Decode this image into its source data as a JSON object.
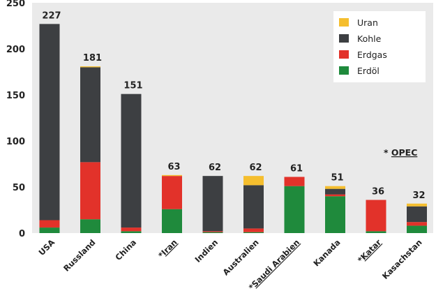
{
  "chart_data": {
    "type": "bar",
    "stacked": true,
    "categories": [
      "USA",
      "Russland",
      "China",
      "*Iran",
      "Indien",
      "Australien",
      "*Saudi Arabien",
      "Kanada",
      "*Katar",
      "Kasachstan"
    ],
    "opec_marked": [
      false,
      false,
      false,
      true,
      false,
      false,
      true,
      false,
      true,
      false
    ],
    "totals": [
      227,
      181,
      151,
      63,
      62,
      62,
      61,
      51,
      36,
      32
    ],
    "series": [
      {
        "name": "Erdöl",
        "color": "#1f8a3c",
        "values": [
          6,
          15,
          2,
          26,
          1,
          1,
          51,
          40,
          2,
          8
        ]
      },
      {
        "name": "Erdgas",
        "color": "#e2322a",
        "values": [
          8,
          62,
          4,
          36,
          1,
          4,
          10,
          2,
          34,
          4
        ]
      },
      {
        "name": "Kohle",
        "color": "#3d3f42",
        "values": [
          213,
          103,
          145,
          0,
          60,
          47,
          0,
          6,
          0,
          17
        ]
      },
      {
        "name": "Uran",
        "color": "#f5be2e",
        "values": [
          0,
          1,
          0,
          1,
          0,
          10,
          0,
          3,
          0,
          3
        ]
      }
    ],
    "ylim": [
      0,
      250
    ],
    "yticks": [
      0,
      50,
      100,
      150,
      200,
      250
    ],
    "grid": false,
    "legend_placement": "top-right",
    "legend_order": [
      "Uran",
      "Kohle",
      "Erdgas",
      "Erdöl"
    ],
    "annotation": "* OPEC"
  }
}
